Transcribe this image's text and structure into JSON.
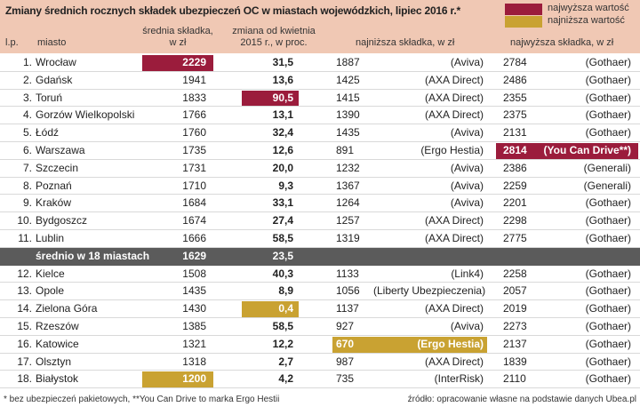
{
  "header": {
    "title": "Zmiany średnich rocznych składek ubezpieczeń OC w miastach wojewódzkich, lipiec 2016 r.*",
    "legend": [
      {
        "label": "najwyższa wartość",
        "color": "#9b1c3c"
      },
      {
        "label": "najniższa wartość",
        "color": "#c9a232"
      }
    ]
  },
  "table": {
    "columns": [
      "l.p.",
      "miasto",
      "średnia składka,\nw zł",
      "zmiana od kwietnia\n2015 r., w proc.",
      "najniższa składka, w zł",
      "najwyższa składka, w zł"
    ],
    "rows": [
      [
        "1.",
        "Wrocław",
        "2229",
        "31,5",
        "1887",
        "(Aviva)",
        "2784",
        "(Gothaer)"
      ],
      [
        "2.",
        "Gdańsk",
        "1941",
        "13,6",
        "1425",
        "(AXA Direct)",
        "2486",
        "(Gothaer)"
      ],
      [
        "3.",
        "Toruń",
        "1833",
        "90,5",
        "1415",
        "(AXA Direct)",
        "2355",
        "(Gothaer)"
      ],
      [
        "4.",
        "Gorzów Wielkopolski",
        "1766",
        "13,1",
        "1390",
        "(AXA Direct)",
        "2375",
        "(Gothaer)"
      ],
      [
        "5.",
        "Łódź",
        "1760",
        "32,4",
        "1435",
        "(Aviva)",
        "2131",
        "(Gothaer)"
      ],
      [
        "6.",
        "Warszawa",
        "1735",
        "12,6",
        "891",
        "(Ergo Hestia)",
        "2814",
        "(You Can Drive**)"
      ],
      [
        "7.",
        "Szczecin",
        "1731",
        "20,0",
        "1232",
        "(Aviva)",
        "2386",
        "(Generali)"
      ],
      [
        "8.",
        "Poznań",
        "1710",
        "9,3",
        "1367",
        "(Aviva)",
        "2259",
        "(Generali)"
      ],
      [
        "9.",
        "Kraków",
        "1684",
        "33,1",
        "1264",
        "(Aviva)",
        "2201",
        "(Gothaer)"
      ],
      [
        "10.",
        "Bydgoszcz",
        "1674",
        "27,4",
        "1257",
        "(AXA Direct)",
        "2298",
        "(Gothaer)"
      ],
      [
        "11.",
        "Lublin",
        "1666",
        "58,5",
        "1319",
        "(AXA Direct)",
        "2775",
        "(Gothaer)"
      ]
    ],
    "average": {
      "label": "średnio w 18 miastach",
      "avg": "1629",
      "change": "23,5"
    },
    "rows_after": [
      [
        "12.",
        "Kielce",
        "1508",
        "40,3",
        "1133",
        "(Link4)",
        "2258",
        "(Gothaer)"
      ],
      [
        "13.",
        "Opole",
        "1435",
        "8,9",
        "1056",
        "(Liberty Ubezpieczenia)",
        "2057",
        "(Gothaer)"
      ],
      [
        "14.",
        "Zielona Góra",
        "1430",
        "0,4",
        "1137",
        "(AXA Direct)",
        "2019",
        "(Gothaer)"
      ],
      [
        "15.",
        "Rzeszów",
        "1385",
        "58,5",
        "927",
        "(Aviva)",
        "2273",
        "(Gothaer)"
      ],
      [
        "16.",
        "Katowice",
        "1321",
        "12,2",
        "670",
        "(Ergo Hestia)",
        "2137",
        "(Gothaer)"
      ],
      [
        "17.",
        "Olsztyn",
        "1318",
        "2,7",
        "987",
        "(AXA Direct)",
        "1839",
        "(Gothaer)"
      ],
      [
        "18.",
        "Białystok",
        "1200",
        "4,2",
        "735",
        "(InterRisk)",
        "2110",
        "(Gothaer)"
      ]
    ]
  },
  "footer": {
    "note": "* bez ubezpieczeń pakietowych, **You Can Drive to marka Ergo Hestii",
    "source": "źródło: opracowanie własne na podstawie danych Ubea.pl"
  }
}
